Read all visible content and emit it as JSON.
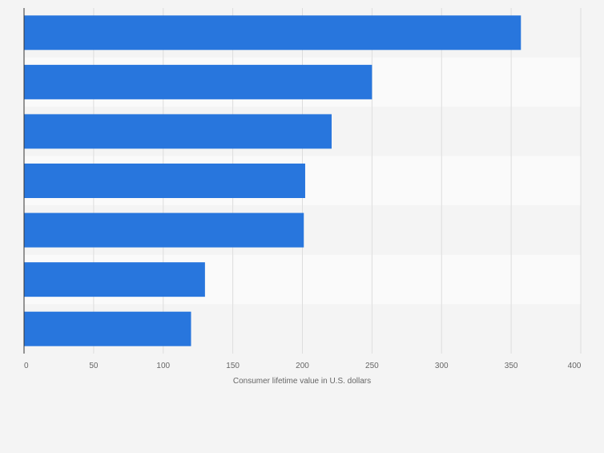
{
  "chart_data": {
    "type": "bar",
    "orientation": "horizontal",
    "title": "",
    "xlabel": "Consumer lifetime value in U.S. dollars",
    "ylabel": "",
    "categories": [
      "",
      "",
      "",
      "",
      "",
      "",
      ""
    ],
    "values": [
      357,
      250,
      221,
      202,
      201,
      130,
      120
    ],
    "xlim": [
      0,
      400
    ],
    "xticks": [
      0,
      50,
      100,
      150,
      200,
      250,
      300,
      350,
      400
    ],
    "grid": true,
    "bar_color": "#2876dd",
    "band_colors": [
      "#f4f4f4",
      "#fafafa"
    ],
    "gridline_color": "#dddddd",
    "tick_text_color": "#666666"
  }
}
